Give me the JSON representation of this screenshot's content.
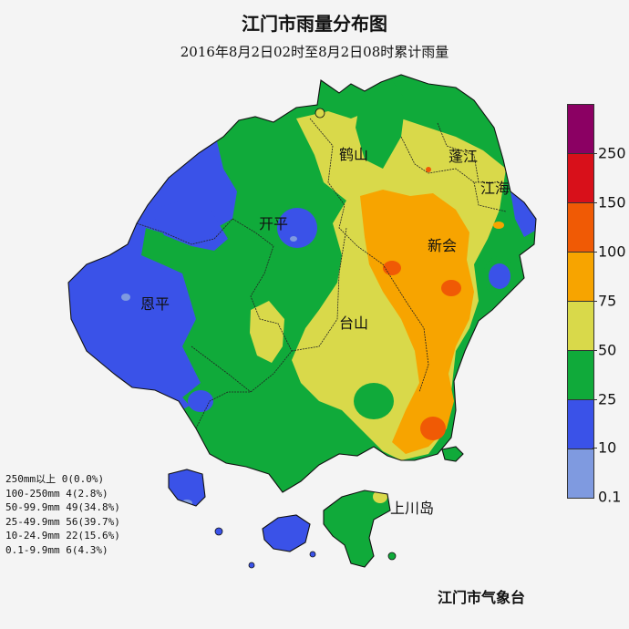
{
  "header": {
    "title": "江门市雨量分布图",
    "subtitle": "2016年8月2日02时至8月2日08时累计雨量"
  },
  "places": [
    {
      "id": "heshan",
      "name": "鹤山"
    },
    {
      "id": "pengjiang",
      "name": "蓬江"
    },
    {
      "id": "jianghai",
      "name": "江海"
    },
    {
      "id": "kaiping",
      "name": "开平"
    },
    {
      "id": "xinhui",
      "name": "新会"
    },
    {
      "id": "enping",
      "name": "恩平"
    },
    {
      "id": "taishan",
      "name": "台山"
    },
    {
      "id": "shangchuan",
      "name": "上川岛"
    }
  ],
  "stats": [
    "250mm以上 0(0.0%)",
    "100-250mm 4(2.8%)",
    "50-99.9mm 49(34.8%)",
    "25-49.9mm 56(39.7%)",
    "10-24.9mm 22(15.6%)",
    "0.1-9.9mm 6(4.3%)"
  ],
  "legend": {
    "colors_top_to_bottom": [
      "#8b0063",
      "#d8101a",
      "#f05a05",
      "#f7a400",
      "#d9d94a",
      "#10aa3a",
      "#3a52e8",
      "#7f9ae0"
    ],
    "tick_labels": [
      "250",
      "150",
      "100",
      "75",
      "50",
      "25",
      "10",
      "0.1"
    ]
  },
  "credit": "江门市气象台"
}
